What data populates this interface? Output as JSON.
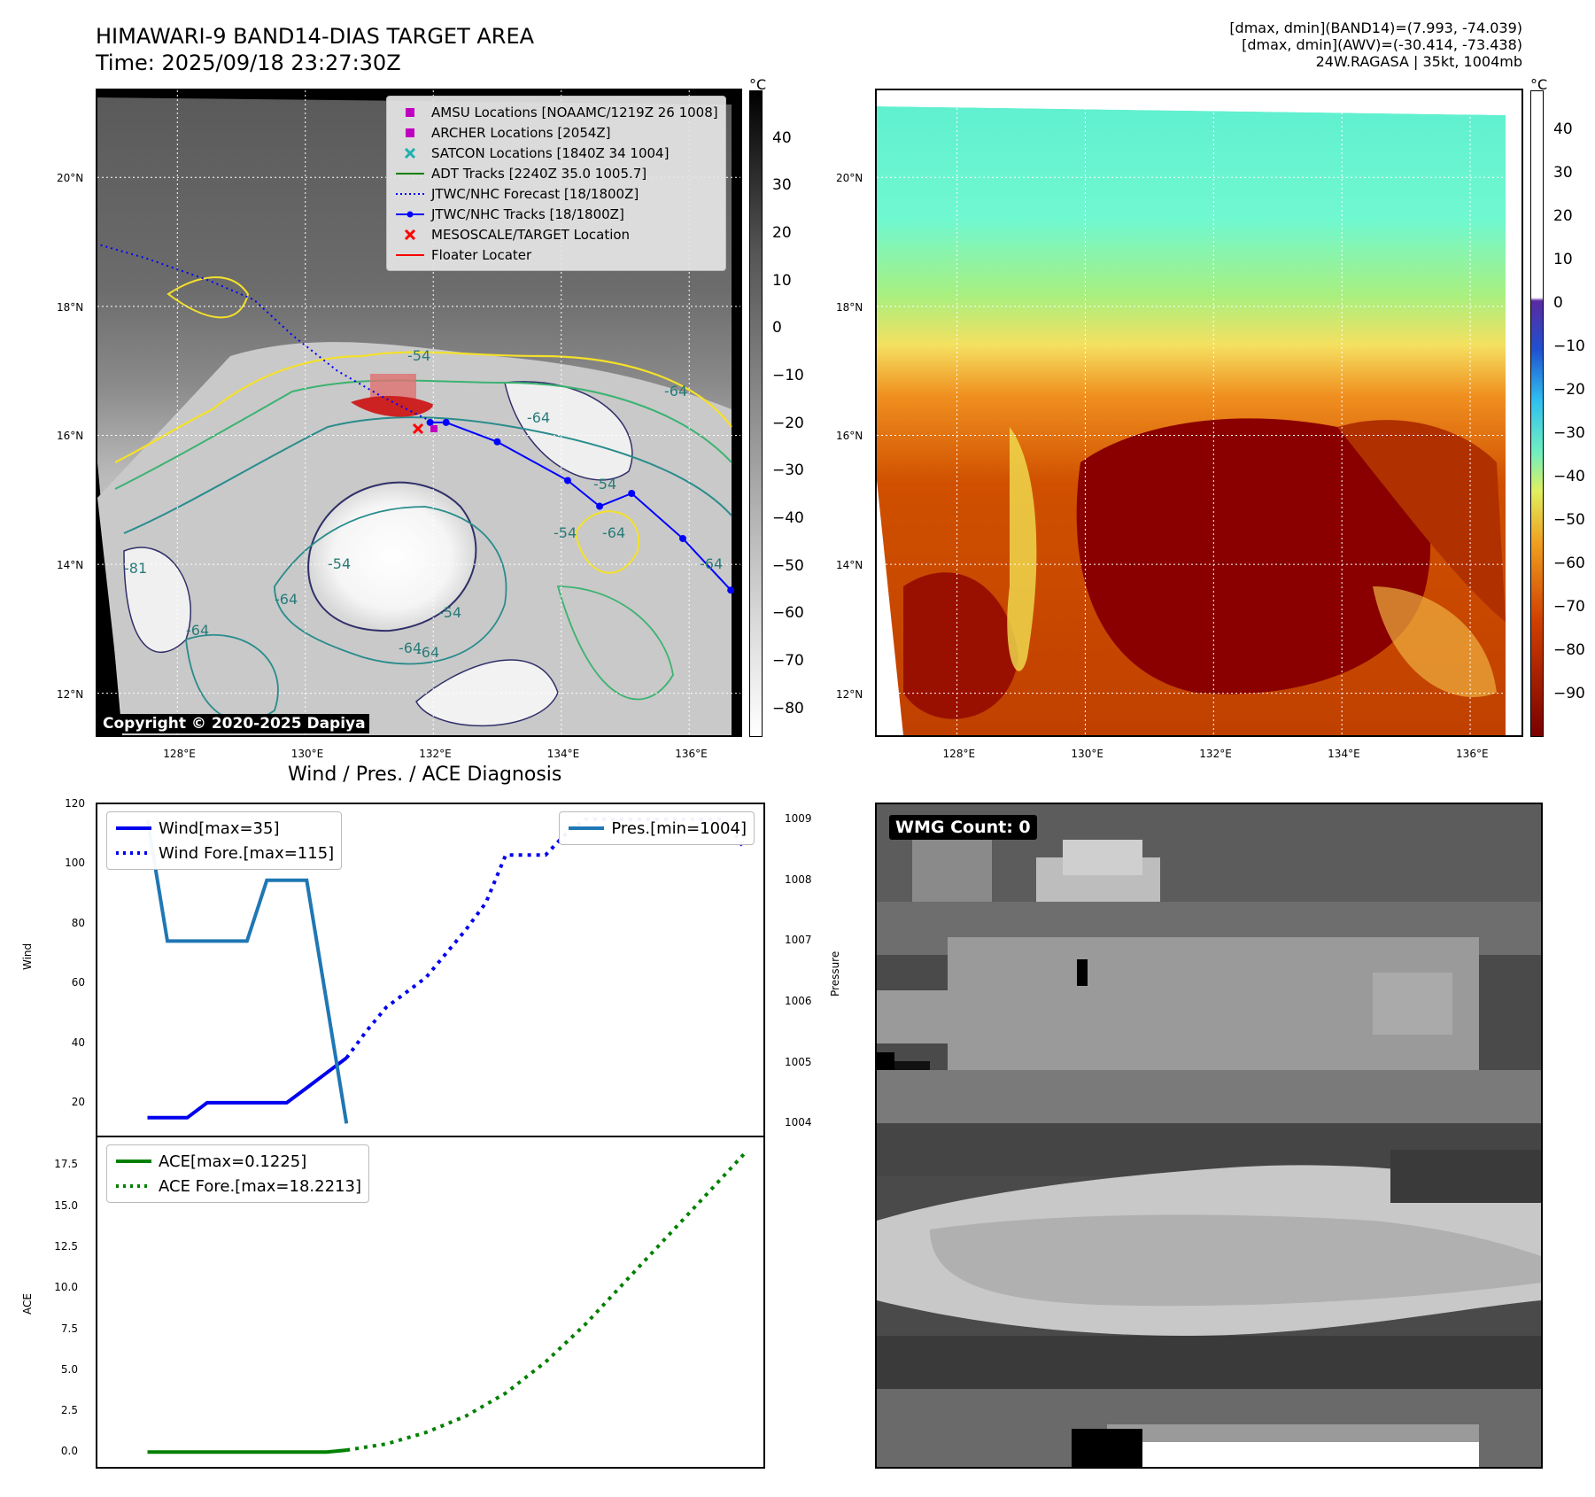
{
  "header": {
    "title_line1": "HIMAWARI-9 BAND14-DIAS TARGET AREA",
    "title_line2": "Time: 2025/09/18 23:27:30Z",
    "info_line1": "[dmax, dmin](BAND14)=(7.993, -74.039)",
    "info_line2": "[dmax, dmin](AWV)=(-30.414, -73.438)",
    "info_line3": "24W.RAGASA | 35kt, 1004mb"
  },
  "ir_map": {
    "lat_labels": [
      "20°N",
      "18°N",
      "16°N",
      "14°N",
      "12°N"
    ],
    "lon_labels": [
      "128°E",
      "130°E",
      "132°E",
      "134°E",
      "136°E"
    ],
    "colorbar_unit": "°C",
    "colorbar_ticks": [
      "40",
      "30",
      "20",
      "10",
      "0",
      "−10",
      "−20",
      "−30",
      "−40",
      "−50",
      "−60",
      "−70",
      "−80"
    ],
    "copyright": "Copyright © 2020-2025 Dapiya",
    "contour_labels": [
      "-64",
      "-54",
      "-64",
      "-54",
      "-64",
      "-54",
      "-64",
      "-81",
      "-64",
      "-54",
      "-64",
      "-64",
      "-64",
      "-54"
    ],
    "legend": [
      {
        "label": "AMSU Locations [NOAAMC/1219Z 26 1008]",
        "color": "#c000c0",
        "symbol": "square"
      },
      {
        "label": "ARCHER Locations [2054Z]",
        "color": "#c000c0",
        "symbol": "square"
      },
      {
        "label": "SATCON Locations [1840Z 34 1004]",
        "color": "#20b0b0",
        "symbol": "x"
      },
      {
        "label": "ADT Tracks [2240Z 35.0 1005.7]",
        "color": "#008000",
        "symbol": "line"
      },
      {
        "label": "JTWC/NHC Forecast [18/1800Z]",
        "color": "#0000ff",
        "symbol": "dotted"
      },
      {
        "label": "JTWC/NHC Tracks [18/1800Z]",
        "color": "#0000ff",
        "symbol": "line-dot"
      },
      {
        "label": "MESOSCALE/TARGET Location",
        "color": "#ff0000",
        "symbol": "x"
      },
      {
        "label": "Floater Locater",
        "color": "#ff0000",
        "symbol": "line"
      }
    ],
    "jtwc_track": [
      [
        131.95,
        16.2
      ],
      [
        132.2,
        16.2
      ],
      [
        133.0,
        15.9
      ],
      [
        134.1,
        15.3
      ],
      [
        134.6,
        14.9
      ],
      [
        135.1,
        15.1
      ],
      [
        135.9,
        14.4
      ],
      [
        136.65,
        13.6
      ]
    ],
    "jtwc_forecast": [
      [
        126.8,
        18.95
      ],
      [
        127.5,
        18.75
      ],
      [
        128.5,
        18.4
      ],
      [
        129.2,
        18.1
      ],
      [
        129.8,
        17.55
      ],
      [
        130.5,
        17.0
      ],
      [
        131.2,
        16.6
      ],
      [
        131.9,
        16.25
      ]
    ]
  },
  "awv_map": {
    "lat_labels": [
      "20°N",
      "18°N",
      "16°N",
      "14°N",
      "12°N"
    ],
    "lon_labels": [
      "128°E",
      "130°E",
      "132°E",
      "134°E",
      "136°E"
    ],
    "colorbar_unit": "°C",
    "colorbar_ticks": [
      "40",
      "30",
      "20",
      "10",
      "0",
      "−10",
      "−20",
      "−30",
      "−40",
      "−50",
      "−60",
      "−70",
      "−80",
      "−90"
    ]
  },
  "wmg": {
    "label": "WMG Count: 0"
  },
  "chart_data": [
    {
      "type": "line",
      "title": "Wind / Pres. / ACE Diagnosis",
      "ylabel": "Wind",
      "ylabel_right": "Pressure",
      "ylim": [
        9,
        120
      ],
      "ylim_right": [
        1003.8,
        1009.25
      ],
      "yticks": [
        "120",
        "100",
        "80",
        "60",
        "40",
        "20"
      ],
      "yticks_right": [
        "1009",
        "1008",
        "1007",
        "1006",
        "1005",
        "1004"
      ],
      "series": [
        {
          "name": "Wind[max=35]",
          "axis": "left",
          "style": "solid",
          "color": "#0000ee",
          "x": [
            0,
            1,
            2,
            3,
            4,
            5,
            6,
            7,
            8,
            9,
            10
          ],
          "values": [
            15,
            15,
            15,
            20,
            20,
            20,
            20,
            20,
            25,
            30,
            35
          ]
        },
        {
          "name": "Wind Fore.[max=115]",
          "axis": "left",
          "style": "dotted",
          "color": "#0000ee",
          "x": [
            10,
            11,
            12,
            13,
            14,
            15,
            16,
            17,
            18,
            19,
            20,
            21,
            22,
            23,
            24,
            25,
            26,
            27,
            28,
            29,
            30
          ],
          "values": [
            35,
            44,
            52,
            57,
            62,
            70,
            78,
            87,
            103,
            103,
            103,
            110,
            115,
            115,
            115,
            115,
            115,
            115,
            115,
            115,
            105
          ]
        },
        {
          "name": "Pres.[min=1004]",
          "axis": "right",
          "style": "solid",
          "color": "#1f77b4",
          "x": [
            0,
            1,
            2,
            3,
            4,
            5,
            6,
            7,
            8,
            9,
            10
          ],
          "values": [
            1009.0,
            1007.0,
            1007.0,
            1007.0,
            1007.0,
            1007.0,
            1008.0,
            1008.0,
            1008.0,
            1006.0,
            1004.0
          ]
        }
      ]
    },
    {
      "type": "line",
      "ylabel": "ACE",
      "ylim": [
        -0.9,
        19.2
      ],
      "yticks": [
        "17.5",
        "15.0",
        "12.5",
        "10.0",
        "7.5",
        "5.0",
        "2.5",
        "0.0"
      ],
      "series": [
        {
          "name": "ACE[max=0.1225]",
          "style": "solid",
          "color": "#008000",
          "x": [
            0,
            2,
            4,
            6,
            8,
            9,
            10
          ],
          "values": [
            0,
            0,
            0,
            0,
            0,
            0.01,
            0.1225
          ]
        },
        {
          "name": "ACE Fore.[max=18.2213]",
          "style": "dotted",
          "color": "#008000",
          "x": [
            10,
            12,
            14,
            16,
            18,
            20,
            22,
            24,
            26,
            28,
            30
          ],
          "values": [
            0.1225,
            0.5,
            1.2,
            2.2,
            3.6,
            5.5,
            7.8,
            10.4,
            13.0,
            15.6,
            18.2213
          ]
        }
      ]
    }
  ]
}
